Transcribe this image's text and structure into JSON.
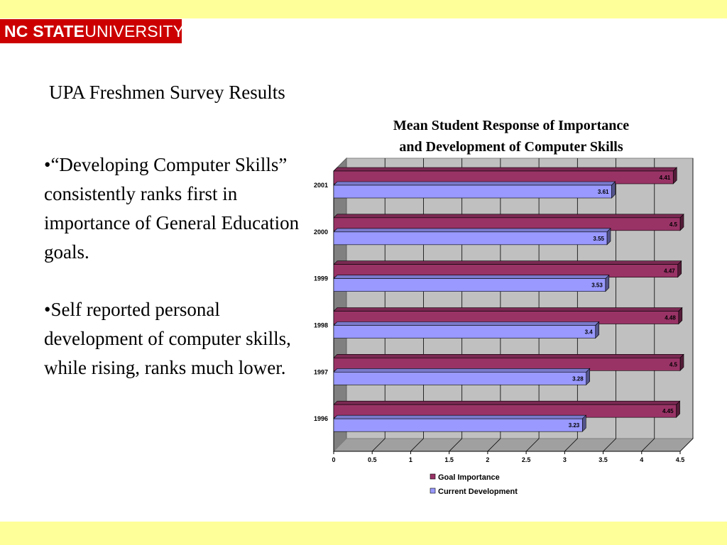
{
  "logo": {
    "bold_text": "NC STATE",
    "thin_text": "UNIVERSITY"
  },
  "slide": {
    "title": "UPA Freshmen Survey Results",
    "bullets": [
      "•“Developing Computer Skills” consistently ranks first in importance of General Education goals.",
      "•Self reported personal development of computer skills, while rising, ranks much lower."
    ]
  },
  "chart_data": {
    "type": "bar",
    "orientation": "horizontal",
    "title_line1": "Mean Student Response of Importance",
    "title_line2": "and Development of Computer Skills",
    "categories": [
      "2001",
      "2000",
      "1999",
      "1998",
      "1997",
      "1996"
    ],
    "series": [
      {
        "name": "Goal Importance",
        "values": [
          4.41,
          4.5,
          4.47,
          4.48,
          4.5,
          4.45
        ],
        "labels": [
          "4.41",
          "4.5",
          "4.47",
          "4.48",
          "4.5",
          "4.45"
        ],
        "color": "#993366"
      },
      {
        "name": "Current Development",
        "values": [
          3.61,
          3.55,
          3.53,
          3.4,
          3.28,
          3.23
        ],
        "labels": [
          "3.61",
          "3.55",
          "3.53",
          "3.4",
          "3.28",
          "3.23"
        ],
        "color": "#9999ff"
      }
    ],
    "x_ticks": [
      "0",
      "0.5",
      "1",
      "1.5",
      "2",
      "2.5",
      "3",
      "3.5",
      "4",
      "4.5"
    ],
    "xlim": [
      0,
      4.5
    ],
    "grid": true,
    "legend_position": "bottom"
  }
}
